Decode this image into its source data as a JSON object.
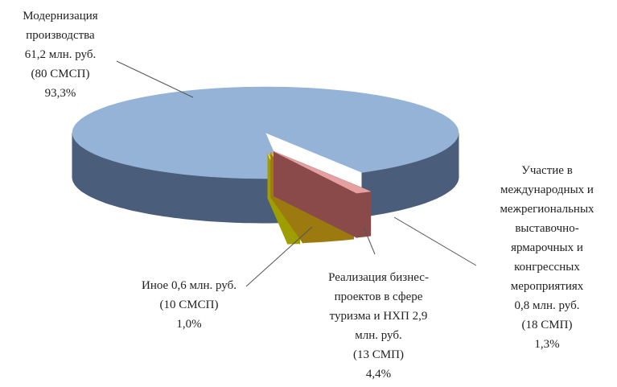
{
  "chart_data": {
    "type": "pie",
    "categories": [
      "Модернизация\nпроизводства\n61,2 млн. руб.\n(80 СМСП)",
      "Иное 0,6 млн. руб.\n(10 СМСП)",
      "Реализация бизнес-\nпроектов в сфере\nтуризма и НХП  2,9\nмлн. руб.\n(13 СМП)",
      "Участие в\nмеждународных и\nмежрегиональных\nвыставочно-\nярмарочных и\nконгрессных\nмероприятиях\n0,8 млн. руб.\n(18 СМП)"
    ],
    "values": [
      93.3,
      1.0,
      4.4,
      1.3
    ],
    "value_labels": [
      "93,3%",
      "1,0%",
      "4,4%",
      "1,3%"
    ],
    "colors": [
      "#95b3d7",
      "#ffff00",
      "#ffc000",
      "#e6a0a0"
    ],
    "side_colors": [
      "#4a5d7a",
      "#9e9e00",
      "#9c7a10",
      "#8b4a4a"
    ]
  }
}
